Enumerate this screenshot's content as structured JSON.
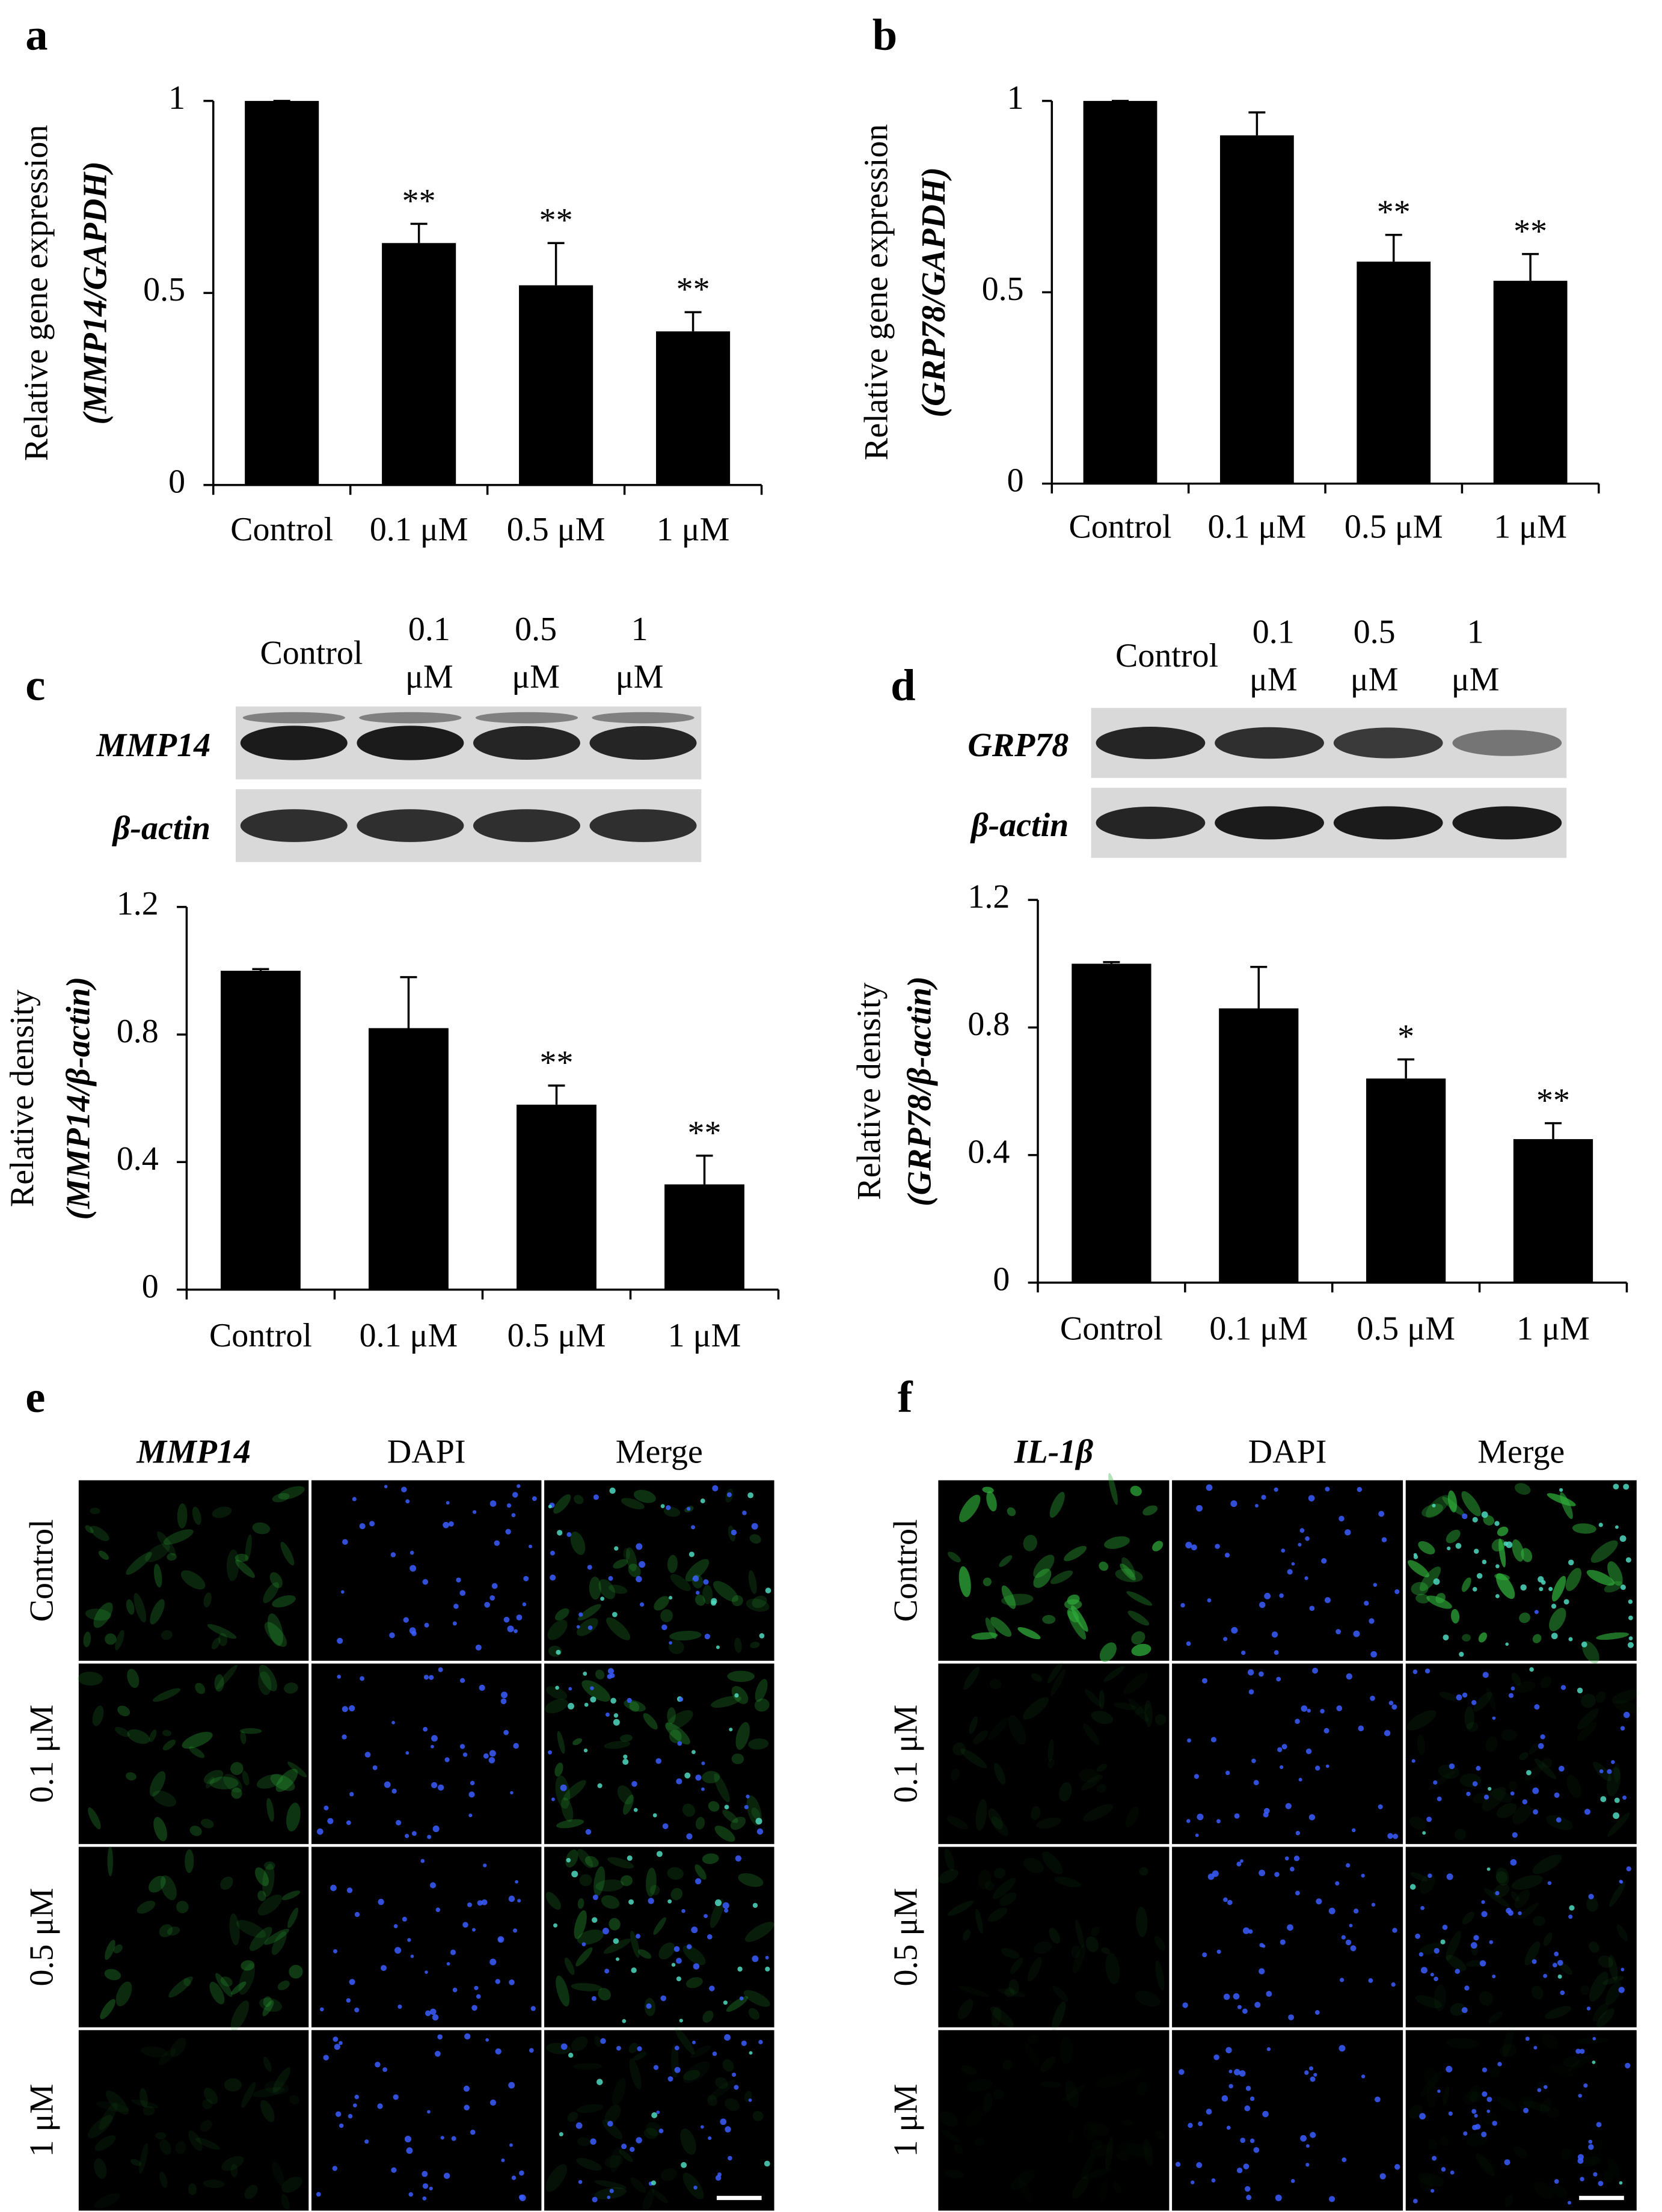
{
  "chart_data": [
    {
      "type": "bar",
      "panel": "a",
      "ylabel": "Relative gene expression",
      "ylabel2": "(MMP14/GAPDH)",
      "categories": [
        "Control",
        "0.1 μM",
        "0.5 μM",
        "1 μM"
      ],
      "values": [
        1,
        0.63,
        0.52,
        0.4
      ],
      "errors": [
        0,
        0.05,
        0.11,
        0.05
      ],
      "annotations": [
        null,
        "**",
        "**",
        "**"
      ],
      "color": "#000000",
      "ylim": [
        0,
        1
      ],
      "yticks": [
        0,
        0.5,
        1
      ]
    },
    {
      "type": "bar",
      "panel": "b",
      "ylabel": "Relative gene expression",
      "ylabel2": "(GRP78/GAPDH)",
      "categories": [
        "Control",
        "0.1 μM",
        "0.5 μM",
        "1 μM"
      ],
      "values": [
        1,
        0.91,
        0.58,
        0.53
      ],
      "errors": [
        0,
        0.06,
        0.07,
        0.07
      ],
      "annotations": [
        null,
        null,
        "**",
        "**"
      ],
      "color": "#000000",
      "ylim": [
        0,
        1
      ],
      "yticks": [
        0,
        0.5,
        1
      ]
    },
    {
      "type": "bar",
      "ylabel": "Relative density",
      "ylabel2": "(MMP14/β-actin)",
      "categories": [
        "Control",
        "0.1 μM",
        "0.5 μM",
        "1 μM"
      ],
      "values": [
        1,
        0.82,
        0.58,
        0.33
      ],
      "errors": [
        0.005,
        0.16,
        0.06,
        0.09
      ],
      "annotations": [
        null,
        null,
        "**",
        "**"
      ],
      "color": "#000000",
      "ylim": [
        0,
        1.2
      ],
      "yticks": [
        0,
        0.4,
        0.8,
        1.2
      ]
    },
    {
      "type": "bar",
      "ylabel": "Relative density",
      "ylabel2": "(GRP78/β-actin)",
      "categories": [
        "Control",
        "0.1 μM",
        "0.5 μM",
        "1 μM"
      ],
      "values": [
        1,
        0.86,
        0.64,
        0.45
      ],
      "errors": [
        0.005,
        0.13,
        0.06,
        0.05
      ],
      "annotations": [
        null,
        null,
        "*",
        "**"
      ],
      "color": "#000000",
      "ylim": [
        0,
        1.2
      ],
      "yticks": [
        0,
        0.4,
        0.8,
        1.2
      ]
    }
  ],
  "blots": [
    {
      "panel": "c",
      "lanes": [
        "Control",
        "0.1 μM",
        "0.5 μM",
        "1 μM"
      ],
      "rows": [
        "MMP14",
        "β-actin"
      ]
    },
    {
      "panel": "d",
      "lanes": [
        "Control",
        "0.1 μM",
        "0.5 μM",
        "1 μM"
      ],
      "rows": [
        "GRP78",
        "β-actin"
      ]
    }
  ],
  "fluorescence": [
    {
      "panel": "e",
      "columns": [
        "MMP14",
        "DAPI",
        "Merge"
      ],
      "rows": [
        "Control",
        "0.1 μM",
        "0.5 μM",
        "1 μM"
      ]
    },
    {
      "panel": "f",
      "columns": [
        "IL-1β",
        "DAPI",
        "Merge"
      ],
      "rows": [
        "Control",
        "0.1 μM",
        "0.5 μM",
        "1 μM"
      ]
    }
  ]
}
